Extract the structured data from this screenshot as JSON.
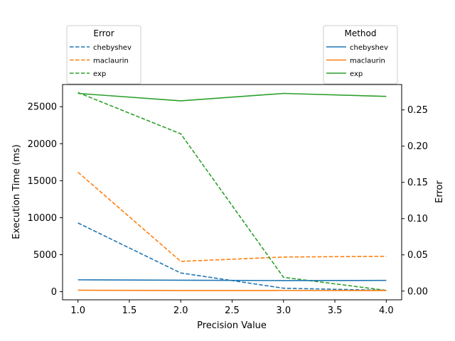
{
  "chart_data": {
    "type": "line",
    "x": [
      1.0,
      2.0,
      3.0,
      4.0
    ],
    "xlabel": "Precision Value",
    "xlim": [
      0.85,
      4.15
    ],
    "xticks": [
      1.0,
      1.5,
      2.0,
      2.5,
      3.0,
      3.5,
      4.0
    ],
    "xtick_labels": [
      "1.0",
      "1.5",
      "2.0",
      "2.5",
      "3.0",
      "3.5",
      "4.0"
    ],
    "left_axis": {
      "label": "Execution Time (ms)",
      "lim": [
        -1100,
        28000
      ],
      "ticks": [
        0,
        5000,
        10000,
        15000,
        20000,
        25000
      ],
      "tick_labels": [
        "0",
        "5000",
        "10000",
        "15000",
        "20000",
        "25000"
      ]
    },
    "right_axis": {
      "label": "Error",
      "lim": [
        -0.012,
        0.285
      ],
      "ticks": [
        0.0,
        0.05,
        0.1,
        0.15,
        0.2,
        0.25
      ],
      "tick_labels": [
        "0.00",
        "0.05",
        "0.10",
        "0.15",
        "0.20",
        "0.25"
      ]
    },
    "time_series": [
      {
        "name": "chebyshev",
        "color": "#1f77b4",
        "style": "solid",
        "values": [
          1600,
          1550,
          1500,
          1520
        ]
      },
      {
        "name": "maclaurin",
        "color": "#ff7f0e",
        "style": "solid",
        "values": [
          200,
          150,
          160,
          150
        ]
      },
      {
        "name": "exp",
        "color": "#2ca02c",
        "style": "solid",
        "values": [
          26800,
          25800,
          26800,
          26400
        ]
      }
    ],
    "error_series": [
      {
        "name": "chebyshev",
        "color": "#1f77b4",
        "style": "dashed",
        "values": [
          0.094,
          0.025,
          0.004,
          0.001
        ]
      },
      {
        "name": "maclaurin",
        "color": "#ff7f0e",
        "style": "dashed",
        "values": [
          0.164,
          0.041,
          0.047,
          0.048
        ]
      },
      {
        "name": "exp",
        "color": "#2ca02c",
        "style": "dashed",
        "values": [
          0.274,
          0.217,
          0.019,
          0.001
        ]
      }
    ],
    "legends": [
      {
        "title": "Error",
        "placement": "above-left",
        "style": "dashed",
        "entries": [
          "chebyshev",
          "maclaurin",
          "exp"
        ]
      },
      {
        "title": "Method",
        "placement": "above-right",
        "style": "solid",
        "entries": [
          "chebyshev",
          "maclaurin",
          "exp"
        ]
      }
    ],
    "grid": false
  }
}
